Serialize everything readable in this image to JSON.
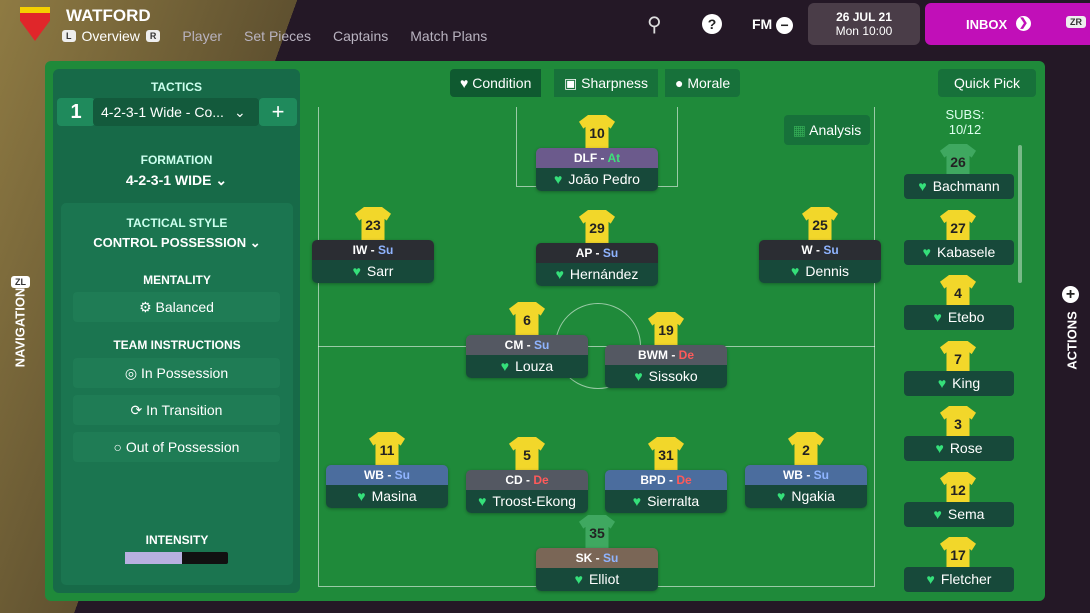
{
  "header": {
    "club": "WATFORD",
    "left_key": "L",
    "right_key": "R",
    "tabs": [
      "Overview",
      "Player",
      "Set Pieces",
      "Captains",
      "Match Plans"
    ],
    "fm": "FM",
    "date": "26 JUL 21",
    "time": "Mon 10:00",
    "inbox": "INBOX",
    "zr": "ZR"
  },
  "left": {
    "tactics_title": "TACTICS",
    "slot": "1",
    "tactic": "4-2-3-1 Wide - Co...",
    "add": "+",
    "formation_label": "FORMATION",
    "formation": "4-2-3-1 WIDE",
    "style_label": "TACTICAL STYLE",
    "style": "CONTROL POSSESSION",
    "mentality_label": "MENTALITY",
    "mentality": "Balanced",
    "ti_label": "TEAM INSTRUCTIONS",
    "instructions": [
      "In Possession",
      "In Transition",
      "Out of Possession"
    ],
    "intensity_label": "INTENSITY",
    "intensity": 0.55
  },
  "tabs": {
    "condition": "Condition",
    "sharpness": "Sharpness",
    "morale": "Morale",
    "quick_pick": "Quick Pick",
    "analysis": "Analysis"
  },
  "subs": {
    "label": "SUBS:",
    "count": "10/12",
    "players": [
      {
        "num": "26",
        "name": "Bachmann",
        "gk": true
      },
      {
        "num": "27",
        "name": "Kabasele"
      },
      {
        "num": "4",
        "name": "Etebo"
      },
      {
        "num": "7",
        "name": "King"
      },
      {
        "num": "3",
        "name": "Rose"
      },
      {
        "num": "12",
        "name": "Sema"
      },
      {
        "num": "17",
        "name": "Fletcher"
      }
    ]
  },
  "players": [
    {
      "num": "10",
      "role": "DLF",
      "duty": "At",
      "name": "João Pedro",
      "color": "#6b5a8c"
    },
    {
      "num": "23",
      "role": "IW",
      "duty": "Su",
      "name": "Sarr",
      "color": "#2b2d33"
    },
    {
      "num": "29",
      "role": "AP",
      "duty": "Su",
      "name": "Hernández",
      "color": "#2b2d33"
    },
    {
      "num": "25",
      "role": "W",
      "duty": "Su",
      "name": "Dennis",
      "color": "#2b2d33"
    },
    {
      "num": "6",
      "role": "CM",
      "duty": "Su",
      "name": "Louza",
      "color": "#545862"
    },
    {
      "num": "19",
      "role": "BWM",
      "duty": "De",
      "name": "Sissoko",
      "color": "#545862"
    },
    {
      "num": "11",
      "role": "WB",
      "duty": "Su",
      "name": "Masina",
      "color": "#4b6d9e"
    },
    {
      "num": "5",
      "role": "CD",
      "duty": "De",
      "name": "Troost-Ekong",
      "color": "#545862"
    },
    {
      "num": "31",
      "role": "BPD",
      "duty": "De",
      "name": "Sierralta",
      "color": "#4b6d9e"
    },
    {
      "num": "2",
      "role": "WB",
      "duty": "Su",
      "name": "Ngakia",
      "color": "#4b6d9e"
    },
    {
      "num": "35",
      "role": "SK",
      "duty": "Su",
      "name": "Elliot",
      "color": "#7a6656",
      "gk": true
    }
  ],
  "duty_colors": {
    "Su": "#8fb4ff",
    "De": "#ff5a5a",
    "At": "#3ee07a"
  },
  "side": {
    "navigation": "NAVIGATION",
    "actions": "ACTIONS",
    "zl": "ZL"
  }
}
